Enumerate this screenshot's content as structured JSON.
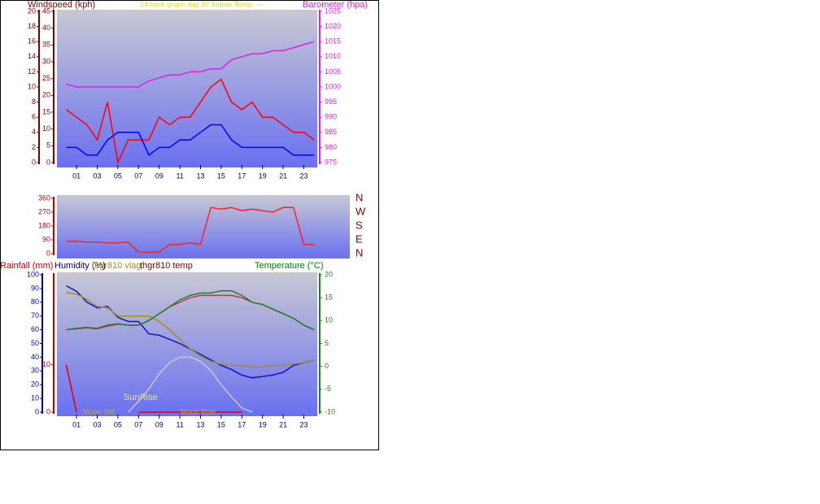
{
  "chart_data": [
    {
      "type": "line",
      "title": "24 hour graph day   07 Indoor Temp.   ---",
      "ylabel": "Windspeed (kph)",
      "y2label": "Barometer (hpa)",
      "x": [
        0,
        1,
        2,
        3,
        4,
        5,
        6,
        7,
        8,
        9,
        10,
        11,
        12,
        13,
        14,
        15,
        16,
        17,
        18,
        19,
        20,
        21,
        22,
        23,
        24
      ],
      "xlim": [
        -0.9,
        24.3
      ],
      "xticks": [
        {
          "value": 1,
          "label": "01"
        },
        {
          "value": 3,
          "label": "03"
        },
        {
          "value": 5,
          "label": "05"
        },
        {
          "value": 7,
          "label": "07"
        },
        {
          "value": 9,
          "label": "09"
        },
        {
          "value": 11,
          "label": "11"
        },
        {
          "value": 13,
          "label": "13"
        },
        {
          "value": 15,
          "label": "15"
        },
        {
          "value": 17,
          "label": "17"
        },
        {
          "value": 19,
          "label": "19"
        },
        {
          "value": 21,
          "label": "21"
        },
        {
          "value": 23,
          "label": "23"
        }
      ],
      "ylim": [
        0,
        20
      ],
      "yticks": [
        0,
        2,
        4,
        6,
        8,
        10,
        12,
        14,
        16,
        18,
        20
      ],
      "y3lim": [
        0,
        45
      ],
      "y3ticks": [
        0,
        5,
        10,
        15,
        20,
        25,
        30,
        35,
        40,
        45
      ],
      "y2lim": [
        975,
        1025
      ],
      "y2ticks": [
        975,
        980,
        985,
        990,
        995,
        1000,
        1005,
        1010,
        1015,
        1020,
        1025
      ],
      "series": [
        {
          "color": "#ff0000",
          "values": [
            7,
            6,
            5,
            3,
            8,
            0,
            3,
            3,
            3,
            6,
            5,
            6,
            6,
            8,
            10,
            11,
            8,
            7,
            8,
            6,
            6,
            5,
            4,
            4,
            3
          ]
        },
        {
          "color": "#0000ff",
          "values": [
            2,
            2,
            1,
            1,
            3,
            4,
            4,
            4,
            1,
            2,
            2,
            3,
            3,
            4,
            5,
            5,
            3,
            2,
            2,
            2,
            2,
            2,
            1,
            1,
            1
          ]
        },
        {
          "color": "#e020e0",
          "axis": "y2",
          "values": [
            1001,
            1000,
            1000,
            1000,
            1000,
            1000,
            1000,
            1000,
            1002,
            1003,
            1004,
            1004,
            1005,
            1005,
            1006,
            1006,
            1009,
            1010,
            1011,
            1011,
            1012,
            1012,
            1013,
            1014,
            1015
          ]
        }
      ]
    },
    {
      "type": "line",
      "x": [
        0,
        1,
        2,
        3,
        4,
        5,
        6,
        7,
        8,
        9,
        10,
        11,
        12,
        13,
        14,
        15,
        16,
        17,
        18,
        19,
        20,
        21,
        22,
        23,
        24
      ],
      "xlim": [
        -0.9,
        24.3
      ],
      "ylim": [
        0,
        360
      ],
      "yticks": [
        0,
        90,
        180,
        270,
        360
      ],
      "y2lim": [
        0,
        360
      ],
      "y2ticks": [
        {
          "value": 0,
          "label": "N"
        },
        {
          "value": 90,
          "label": "E"
        },
        {
          "value": 180,
          "label": "S"
        },
        {
          "value": 270,
          "label": "W"
        },
        {
          "value": 360,
          "label": "N"
        }
      ],
      "series": [
        {
          "color": "#ff2020",
          "values": [
            80,
            80,
            75,
            75,
            70,
            70,
            75,
            10,
            10,
            10,
            60,
            60,
            70,
            60,
            300,
            290,
            300,
            280,
            290,
            280,
            270,
            300,
            300,
            60,
            60
          ]
        }
      ]
    },
    {
      "type": "line",
      "x": [
        0,
        1,
        2,
        3,
        4,
        5,
        6,
        7,
        8,
        9,
        10,
        11,
        12,
        13,
        14,
        15,
        16,
        17,
        18,
        19,
        20,
        21,
        22,
        23,
        24
      ],
      "xlim": [
        -0.9,
        24.3
      ],
      "xticks": [
        {
          "value": 1,
          "label": "01"
        },
        {
          "value": 3,
          "label": "03"
        },
        {
          "value": 5,
          "label": "05"
        },
        {
          "value": 7,
          "label": "07"
        },
        {
          "value": 9,
          "label": "09"
        },
        {
          "value": 11,
          "label": "11"
        },
        {
          "value": 13,
          "label": "13"
        },
        {
          "value": 15,
          "label": "15"
        },
        {
          "value": 17,
          "label": "17"
        },
        {
          "value": 19,
          "label": "19"
        },
        {
          "value": 21,
          "label": "21"
        },
        {
          "value": 23,
          "label": "23"
        }
      ],
      "ylim": [
        0,
        100
      ],
      "yticks": [
        0,
        10,
        20,
        30,
        40,
        50,
        60,
        70,
        80,
        90,
        100
      ],
      "y3lim": [
        0,
        29
      ],
      "y3ticks": [
        0,
        10
      ],
      "y2lim": [
        -10,
        20
      ],
      "y2ticks": [
        -10,
        -5,
        0,
        5,
        10,
        15,
        20
      ],
      "annotations": [
        "Moon Set",
        "Moon Rise"
      ],
      "series": [
        {
          "name": "Rainfall (mm)",
          "color": "#e00000",
          "axis": "y3",
          "values": [
            10,
            0,
            null,
            null,
            null,
            null,
            null,
            0,
            0,
            0,
            0,
            0,
            0,
            0,
            0,
            0,
            0,
            0,
            null,
            null,
            null,
            null,
            null,
            null,
            null
          ]
        },
        {
          "name": "Humidity (%)",
          "color": "#1010d0",
          "values": [
            92,
            88,
            80,
            76,
            77,
            69,
            66,
            66,
            57,
            56,
            53,
            50,
            46,
            42,
            38,
            34,
            31,
            27,
            25,
            26,
            27,
            29,
            34,
            36,
            38
          ]
        },
        {
          "name": "thgr810 vlag",
          "color": "#a09020",
          "values": [
            87,
            86,
            82,
            77,
            76,
            70,
            70,
            70,
            70,
            66,
            60,
            53,
            46,
            41,
            37,
            35,
            34,
            34,
            33,
            33,
            34,
            34,
            35,
            36,
            38
          ]
        },
        {
          "name": "thgr810 temp",
          "color": "#c03050",
          "axis": "y2",
          "values": [
            8,
            8.2,
            8.4,
            8.2,
            8.8,
            9.2,
            9,
            9,
            10,
            11.5,
            13,
            14,
            15,
            15.5,
            15.5,
            15.5,
            15.5,
            15,
            14,
            13.5,
            12.5,
            11.5,
            10.5,
            9,
            8
          ]
        },
        {
          "name": "Temperature (°C)",
          "color": "#208020",
          "axis": "y2",
          "values": [
            8,
            8.3,
            8.5,
            8.3,
            9,
            9.3,
            9,
            9,
            10,
            11.5,
            13,
            14.5,
            15.5,
            16,
            16,
            16.5,
            16.5,
            15.5,
            14,
            13.5,
            12.5,
            11.5,
            10.5,
            9,
            8
          ]
        },
        {
          "name": "SunRise",
          "color": "#c8c8c8",
          "values": [
            null,
            null,
            null,
            null,
            null,
            null,
            0,
            8,
            17,
            28,
            36,
            40,
            40,
            37,
            30,
            20,
            11,
            3,
            0,
            null,
            null,
            null,
            null,
            null,
            null
          ]
        }
      ]
    }
  ]
}
